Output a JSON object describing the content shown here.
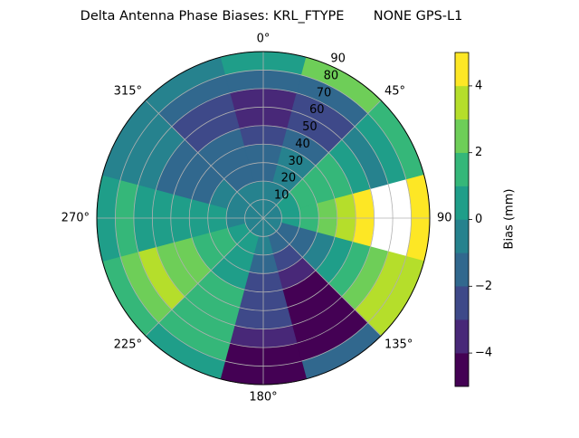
{
  "chart_data": {
    "type": "polar_contour",
    "title": "Delta Antenna Phase Biases: KRL_FTYPE       NONE GPS-L1",
    "theta_zero": "N",
    "theta_direction": "clockwise",
    "theta_ticks": [
      {
        "value": 0,
        "label": "0°"
      },
      {
        "value": 45,
        "label": "45°"
      },
      {
        "value": 90,
        "label": "90"
      },
      {
        "value": 135,
        "label": "135°"
      },
      {
        "value": 180,
        "label": "180°"
      },
      {
        "value": 225,
        "label": "225°"
      },
      {
        "value": 270,
        "label": "270°"
      },
      {
        "value": 315,
        "label": "315°"
      }
    ],
    "rlim": [
      0,
      90
    ],
    "rticks": [
      10,
      20,
      30,
      40,
      50,
      60,
      70,
      80,
      90
    ],
    "grid": true,
    "azimuth": [
      0,
      30,
      60,
      90,
      120,
      150,
      180,
      210,
      240,
      270,
      300,
      330
    ],
    "radius": [
      5,
      15,
      25,
      35,
      45,
      55,
      65,
      75,
      85
    ],
    "values": [
      [
        -0.5,
        -0.5,
        -0.5,
        -0.5,
        -0.5,
        -0.5,
        -0.5,
        -0.5,
        -0.5,
        -0.5,
        -0.5,
        -0.5
      ],
      [
        -0.5,
        -0.5,
        0.5,
        0.5,
        -1.5,
        -1.5,
        -0.5,
        0.5,
        0.5,
        -0.5,
        -0.5,
        -0.5
      ],
      [
        -1.5,
        -0.5,
        1.5,
        1.5,
        -1.5,
        -2.5,
        -1.5,
        0.5,
        1.5,
        0.5,
        -0.5,
        -1.5
      ],
      [
        -1.5,
        -0.5,
        1.5,
        2.5,
        -0.5,
        -3.5,
        -2.5,
        0.5,
        1.5,
        0.5,
        -1.5,
        -1.5
      ],
      [
        -2.5,
        -1.5,
        1.5,
        3.5,
        0.5,
        -4.5,
        -2.5,
        1.5,
        2.5,
        0.5,
        -1.5,
        -1.5
      ],
      [
        -3.5,
        -2.5,
        0.5,
        4.5,
        1.5,
        -4.5,
        -2.5,
        1.5,
        2.5,
        0.5,
        -1.5,
        -2.5
      ],
      [
        -3.5,
        -2.5,
        -0.5,
        5.5,
        2.5,
        -4.5,
        -3.5,
        1.5,
        3.5,
        0.5,
        -0.5,
        -2.5
      ],
      [
        -1.5,
        -1.5,
        0.5,
        5.5,
        3.5,
        -4.5,
        -4.5,
        1.5,
        2.5,
        1.5,
        -0.5,
        -1.5
      ],
      [
        0.5,
        2.5,
        1.5,
        4.5,
        3.5,
        -1.5,
        -4.5,
        0.5,
        1.5,
        0.5,
        -0.5,
        -0.5
      ]
    ],
    "colorbar": {
      "label": "Bias (mm)",
      "levels": [
        -5,
        -4,
        -3,
        -2,
        -1,
        0,
        1,
        2,
        3,
        4,
        5
      ],
      "colors": [
        "#440154",
        "#482878",
        "#3e4989",
        "#31688e",
        "#26828e",
        "#1f9e89",
        "#35b779",
        "#6ece58",
        "#b5de2b",
        "#fde725"
      ],
      "ticks": [
        {
          "value": -4,
          "label": "−4"
        },
        {
          "value": -2,
          "label": "−2"
        },
        0,
        2,
        4
      ]
    }
  }
}
